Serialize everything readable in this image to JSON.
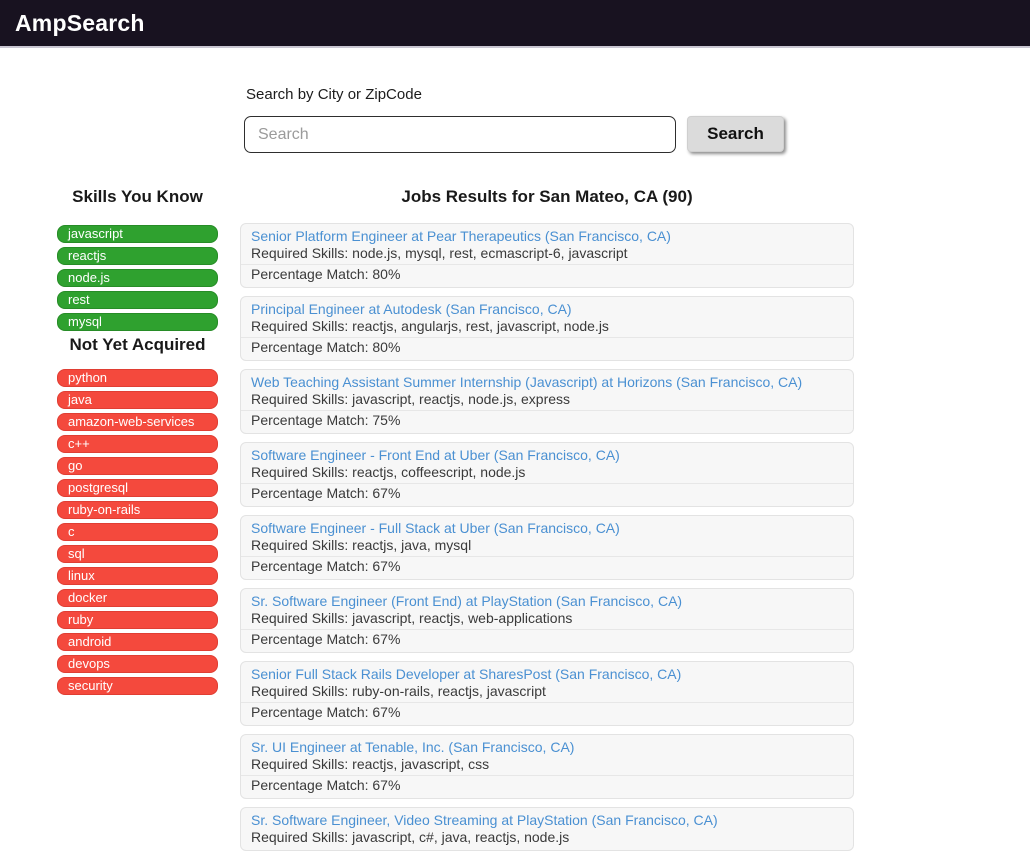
{
  "header": {
    "title": "AmpSearch"
  },
  "search": {
    "label": "Search by City or ZipCode",
    "placeholder": "Search",
    "button_label": "Search"
  },
  "sidebar": {
    "known_heading": "Skills You Know",
    "known_skills": [
      "javascript",
      "reactjs",
      "node.js",
      "rest",
      "mysql"
    ],
    "not_acquired_heading": "Not Yet Acquired",
    "not_acquired_skills": [
      "python",
      "java",
      "amazon-web-services",
      "c++",
      "go",
      "postgresql",
      "ruby-on-rails",
      "c",
      "sql",
      "linux",
      "docker",
      "ruby",
      "android",
      "devops",
      "security"
    ]
  },
  "results": {
    "heading": "Jobs Results for San Mateo, CA (90)",
    "required_skills_label": "Required Skills: ",
    "match_label": "Percentage Match: ",
    "jobs": [
      {
        "title": "Senior Platform Engineer at Pear Therapeutics (San Francisco, CA)",
        "skills": "node.js, mysql, rest, ecmascript-6, javascript",
        "match": "80%"
      },
      {
        "title": "Principal Engineer at Autodesk (San Francisco, CA)",
        "skills": "reactjs, angularjs, rest, javascript, node.js",
        "match": "80%"
      },
      {
        "title": "Web Teaching Assistant Summer Internship (Javascript) at Horizons (San Francisco, CA)",
        "skills": "javascript, reactjs, node.js, express",
        "match": "75%"
      },
      {
        "title": "Software Engineer - Front End at Uber (San Francisco, CA)",
        "skills": "reactjs, coffeescript, node.js",
        "match": "67%"
      },
      {
        "title": "Software Engineer - Full Stack at Uber (San Francisco, CA)",
        "skills": "reactjs, java, mysql",
        "match": "67%"
      },
      {
        "title": "Sr. Software Engineer (Front End) at PlayStation (San Francisco, CA)",
        "skills": "javascript, reactjs, web-applications",
        "match": "67%"
      },
      {
        "title": "Senior Full Stack Rails Developer at SharesPost (San Francisco, CA)",
        "skills": "ruby-on-rails, reactjs, javascript",
        "match": "67%"
      },
      {
        "title": "Sr. UI Engineer at Tenable, Inc. (San Francisco, CA)",
        "skills": "reactjs, javascript, css",
        "match": "67%"
      },
      {
        "title": "Sr. Software Engineer, Video Streaming at PlayStation (San Francisco, CA)",
        "skills": "javascript, c#, java, reactjs, node.js",
        "match": null
      }
    ]
  },
  "colors": {
    "header_bg": "#181220",
    "skill_known_green": "#2fa12f",
    "skill_missing_red": "#f4493d",
    "job_link_blue": "#4a90d2"
  }
}
